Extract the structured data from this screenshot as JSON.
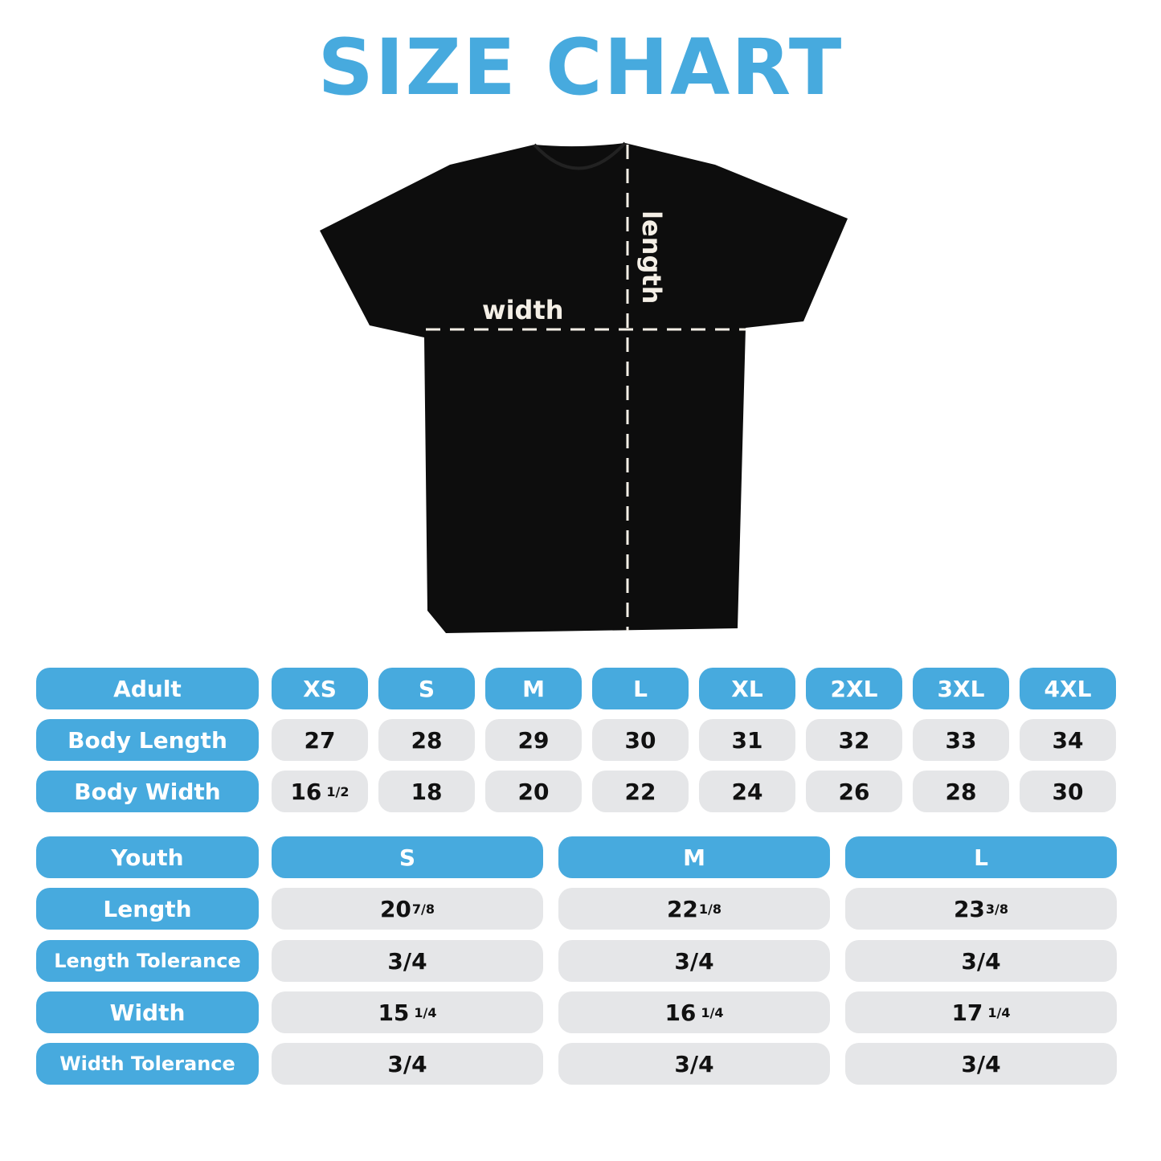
{
  "title": "SIZE CHART",
  "shirt": {
    "width_label": "width",
    "length_label": "length"
  },
  "colors": {
    "accent": "#47aade",
    "cell": "#e5e6e8",
    "shirt": "#0d0d0d"
  },
  "adult": {
    "header": "Adult",
    "sizes": [
      "XS",
      "S",
      "M",
      "L",
      "XL",
      "2XL",
      "3XL",
      "4XL"
    ],
    "rows": [
      {
        "label": "Body Length",
        "values": [
          {
            "whole": "27"
          },
          {
            "whole": "28"
          },
          {
            "whole": "29"
          },
          {
            "whole": "30"
          },
          {
            "whole": "31"
          },
          {
            "whole": "32"
          },
          {
            "whole": "33"
          },
          {
            "whole": "34"
          }
        ]
      },
      {
        "label": "Body Width",
        "values": [
          {
            "whole": "16",
            "frac": "1/2"
          },
          {
            "whole": "18"
          },
          {
            "whole": "20"
          },
          {
            "whole": "22"
          },
          {
            "whole": "24"
          },
          {
            "whole": "26"
          },
          {
            "whole": "28"
          },
          {
            "whole": "30"
          }
        ]
      }
    ]
  },
  "youth": {
    "header": "Youth",
    "sizes": [
      "S",
      "M",
      "L"
    ],
    "rows": [
      {
        "label": "Length",
        "values": [
          {
            "whole": "20",
            "frac": "7/8"
          },
          {
            "whole": "22",
            "frac": "1/8"
          },
          {
            "whole": "23",
            "frac": "3/8"
          }
        ]
      },
      {
        "label": "Length Tolerance",
        "values": [
          {
            "whole": "3/4"
          },
          {
            "whole": "3/4"
          },
          {
            "whole": "3/4"
          }
        ]
      },
      {
        "label": "Width",
        "values": [
          {
            "whole": "15",
            "frac": "1/4"
          },
          {
            "whole": "16",
            "frac": "1/4"
          },
          {
            "whole": "17",
            "frac": "1/4"
          }
        ]
      },
      {
        "label": "Width Tolerance",
        "values": [
          {
            "whole": "3/4"
          },
          {
            "whole": "3/4"
          },
          {
            "whole": "3/4"
          }
        ]
      }
    ]
  }
}
